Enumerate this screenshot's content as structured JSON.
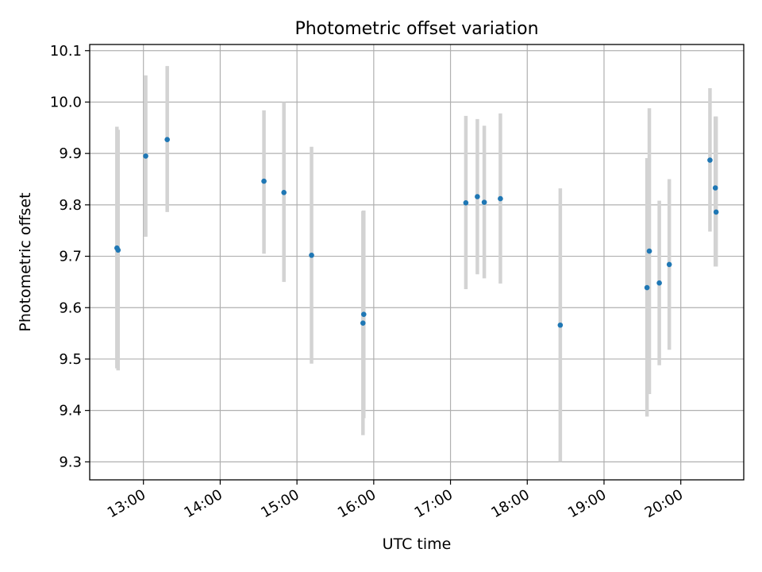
{
  "chart_data": {
    "type": "scatter",
    "title": "Photometric offset variation",
    "xlabel": "UTC time",
    "ylabel": "Photometric offset",
    "x_unit": "UTC time (hours)",
    "xlim": [
      12.3,
      20.82
    ],
    "ylim": [
      9.265,
      10.112
    ],
    "grid": true,
    "legend": "none",
    "x_ticks": [
      {
        "value": 13,
        "label": "13:00"
      },
      {
        "value": 14,
        "label": "14:00"
      },
      {
        "value": 15,
        "label": "15:00"
      },
      {
        "value": 16,
        "label": "16:00"
      },
      {
        "value": 17,
        "label": "17:00"
      },
      {
        "value": 18,
        "label": "18:00"
      },
      {
        "value": 19,
        "label": "19:00"
      },
      {
        "value": 20,
        "label": "20:00"
      }
    ],
    "y_ticks": [
      {
        "value": 9.3,
        "label": "9.3"
      },
      {
        "value": 9.4,
        "label": "9.4"
      },
      {
        "value": 9.5,
        "label": "9.5"
      },
      {
        "value": 9.6,
        "label": "9.6"
      },
      {
        "value": 9.7,
        "label": "9.7"
      },
      {
        "value": 9.8,
        "label": "9.8"
      },
      {
        "value": 9.9,
        "label": "9.9"
      },
      {
        "value": 10.0,
        "label": "10.0"
      },
      {
        "value": 10.1,
        "label": "10.1"
      }
    ],
    "colors": {
      "points": "#1f77b4",
      "errorbars": "#d3d3d3",
      "grid": "#b0b0b0"
    },
    "points": [
      {
        "x": 12.655,
        "y": 9.716,
        "ylow": 9.482,
        "yhigh": 9.952
      },
      {
        "x": 12.67,
        "y": 9.712,
        "ylow": 9.478,
        "yhigh": 9.946
      },
      {
        "x": 13.03,
        "y": 9.895,
        "ylow": 9.738,
        "yhigh": 10.052
      },
      {
        "x": 13.31,
        "y": 9.927,
        "ylow": 9.786,
        "yhigh": 10.07
      },
      {
        "x": 14.57,
        "y": 9.846,
        "ylow": 9.705,
        "yhigh": 9.984
      },
      {
        "x": 14.83,
        "y": 9.824,
        "ylow": 9.65,
        "yhigh": 10.0
      },
      {
        "x": 15.19,
        "y": 9.702,
        "ylow": 9.491,
        "yhigh": 9.913
      },
      {
        "x": 15.87,
        "y": 9.587,
        "ylow": 9.385,
        "yhigh": 9.789
      },
      {
        "x": 15.86,
        "y": 9.57,
        "ylow": 9.352,
        "yhigh": 9.788
      },
      {
        "x": 17.2,
        "y": 9.804,
        "ylow": 9.636,
        "yhigh": 9.973
      },
      {
        "x": 17.35,
        "y": 9.816,
        "ylow": 9.665,
        "yhigh": 9.967
      },
      {
        "x": 17.44,
        "y": 9.805,
        "ylow": 9.657,
        "yhigh": 9.954
      },
      {
        "x": 17.65,
        "y": 9.812,
        "ylow": 9.647,
        "yhigh": 9.978
      },
      {
        "x": 18.43,
        "y": 9.566,
        "ylow": 9.3,
        "yhigh": 9.832
      },
      {
        "x": 19.56,
        "y": 9.639,
        "ylow": 9.388,
        "yhigh": 9.891
      },
      {
        "x": 19.59,
        "y": 9.71,
        "ylow": 9.432,
        "yhigh": 9.988
      },
      {
        "x": 19.72,
        "y": 9.648,
        "ylow": 9.488,
        "yhigh": 9.808
      },
      {
        "x": 19.85,
        "y": 9.684,
        "ylow": 9.518,
        "yhigh": 9.85
      },
      {
        "x": 20.38,
        "y": 9.887,
        "ylow": 9.748,
        "yhigh": 10.027
      },
      {
        "x": 20.45,
        "y": 9.833,
        "ylow": 9.68,
        "yhigh": 9.972
      },
      {
        "x": 20.46,
        "y": 9.786,
        "ylow": 9.68,
        "yhigh": 9.972
      }
    ]
  }
}
